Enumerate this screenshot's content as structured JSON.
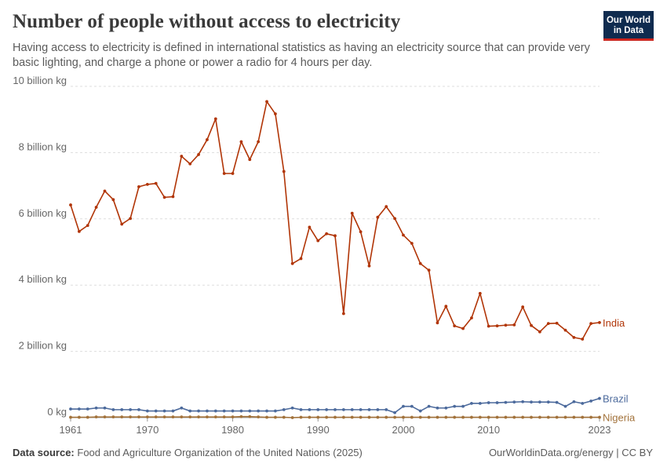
{
  "header": {
    "title": "Number of people without access to electricity",
    "subtitle": "Having access to electricity is defined in international statistics as having an electricity source that can provide very basic lighting, and charge a phone or power a radio for 4 hours per day."
  },
  "logo": {
    "line1": "Our World",
    "line2": "in Data"
  },
  "footer": {
    "source_label": "Data source:",
    "source_text": "Food and Agriculture Organization of the United Nations (2025)",
    "attribution": "OurWorldinData.org/energy | CC BY"
  },
  "chart_data": {
    "type": "line",
    "title": "Number of people without access to electricity",
    "xlabel": "",
    "ylabel": "",
    "xlim": [
      1961,
      2023
    ],
    "ylim": [
      0,
      10
    ],
    "x_ticks": [
      1961,
      1970,
      1980,
      1990,
      2000,
      2010,
      2023
    ],
    "y_ticks": [
      {
        "value": 0,
        "label": "0 kg"
      },
      {
        "value": 2,
        "label": "2 billion kg"
      },
      {
        "value": 4,
        "label": "4 billion kg"
      },
      {
        "value": 6,
        "label": "6 billion kg"
      },
      {
        "value": 8,
        "label": "8 billion kg"
      },
      {
        "value": 10,
        "label": "10 billion kg"
      }
    ],
    "grid": true,
    "legend": "inline-right",
    "x": [
      1961,
      1962,
      1963,
      1964,
      1965,
      1966,
      1967,
      1968,
      1969,
      1970,
      1971,
      1972,
      1973,
      1974,
      1975,
      1976,
      1977,
      1978,
      1979,
      1980,
      1981,
      1982,
      1983,
      1984,
      1985,
      1986,
      1987,
      1988,
      1989,
      1990,
      1991,
      1992,
      1993,
      1994,
      1995,
      1996,
      1997,
      1998,
      1999,
      2000,
      2001,
      2002,
      2003,
      2004,
      2005,
      2006,
      2007,
      2008,
      2009,
      2010,
      2011,
      2012,
      2013,
      2014,
      2015,
      2016,
      2017,
      2018,
      2019,
      2020,
      2021,
      2022,
      2023
    ],
    "series": [
      {
        "name": "India",
        "color": "#b13507",
        "values": [
          6.42,
          5.62,
          5.8,
          6.35,
          6.84,
          6.58,
          5.84,
          6.01,
          6.97,
          7.04,
          7.07,
          6.65,
          6.67,
          7.89,
          7.66,
          7.94,
          8.39,
          9.02,
          7.37,
          7.37,
          8.33,
          7.79,
          8.33,
          9.54,
          9.17,
          7.43,
          4.65,
          4.8,
          5.75,
          5.34,
          5.55,
          5.49,
          3.14,
          6.17,
          5.61,
          4.58,
          6.05,
          6.37,
          6.01,
          5.51,
          5.26,
          4.65,
          4.45,
          2.86,
          3.36,
          2.77,
          2.69,
          3.01,
          3.75,
          2.76,
          2.77,
          2.79,
          2.8,
          3.34,
          2.78,
          2.59,
          2.84,
          2.85,
          2.64,
          2.42,
          2.37,
          2.84,
          2.87
        ]
      },
      {
        "name": "Brazil",
        "color": "#4c6a9c",
        "values": [
          0.26,
          0.26,
          0.26,
          0.29,
          0.29,
          0.24,
          0.24,
          0.24,
          0.24,
          0.2,
          0.2,
          0.2,
          0.2,
          0.29,
          0.2,
          0.2,
          0.2,
          0.2,
          0.2,
          0.2,
          0.2,
          0.2,
          0.2,
          0.2,
          0.2,
          0.24,
          0.29,
          0.24,
          0.24,
          0.24,
          0.24,
          0.24,
          0.24,
          0.24,
          0.24,
          0.24,
          0.24,
          0.24,
          0.15,
          0.34,
          0.34,
          0.2,
          0.34,
          0.29,
          0.29,
          0.34,
          0.34,
          0.43,
          0.43,
          0.45,
          0.45,
          0.46,
          0.47,
          0.48,
          0.47,
          0.47,
          0.47,
          0.46,
          0.34,
          0.48,
          0.43,
          0.5,
          0.58
        ]
      },
      {
        "name": "Nigeria",
        "color": "#a2723b",
        "values": [
          0.01,
          0.01,
          0.01,
          0.02,
          0.02,
          0.02,
          0.02,
          0.02,
          0.02,
          0.02,
          0.02,
          0.02,
          0.02,
          0.02,
          0.02,
          0.02,
          0.02,
          0.02,
          0.02,
          0.02,
          0.03,
          0.03,
          0.02,
          0.01,
          0.01,
          0.01,
          0.0,
          0.01,
          0.01,
          0.01,
          0.01,
          0.01,
          0.01,
          0.01,
          0.01,
          0.01,
          0.01,
          0.01,
          0.01,
          0.01,
          0.01,
          0.01,
          0.01,
          0.01,
          0.01,
          0.01,
          0.01,
          0.01,
          0.01,
          0.01,
          0.01,
          0.01,
          0.01,
          0.01,
          0.01,
          0.01,
          0.01,
          0.01,
          0.01,
          0.01,
          0.01,
          0.01,
          0.01
        ]
      }
    ]
  }
}
